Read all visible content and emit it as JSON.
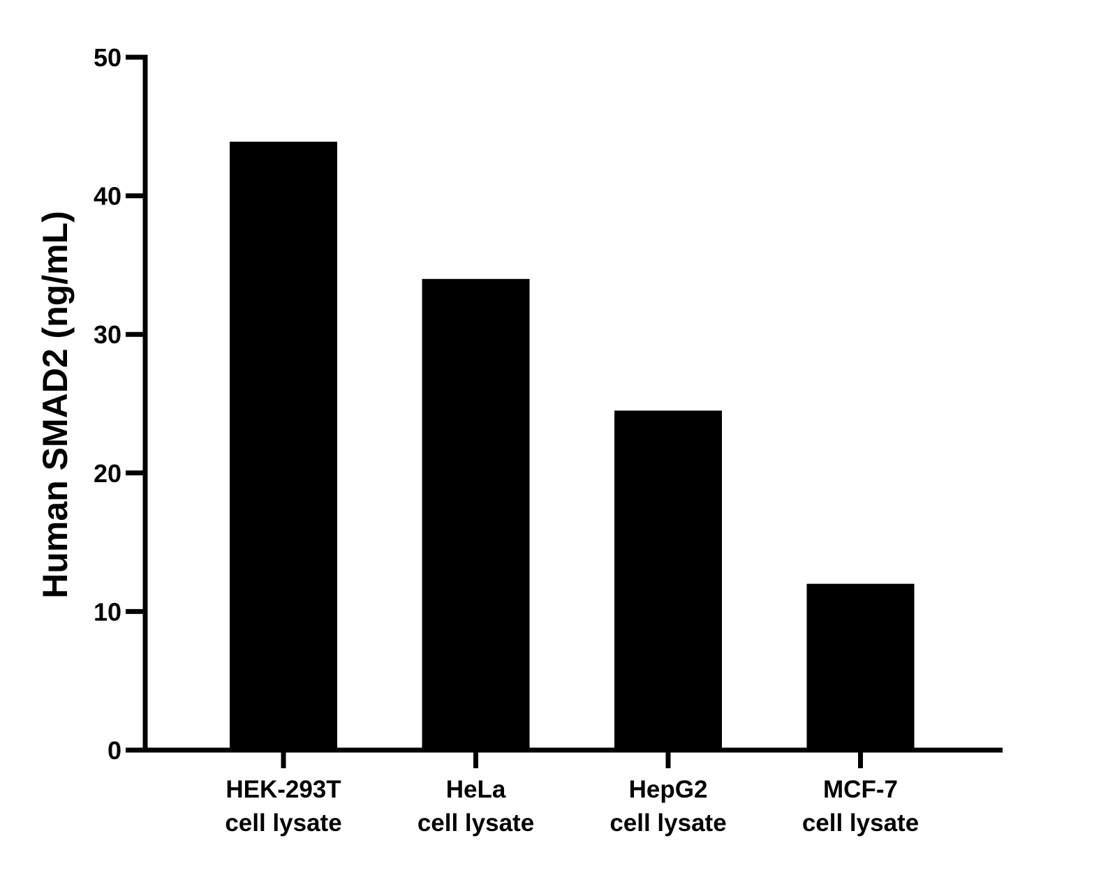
{
  "chart_data": {
    "type": "bar",
    "title": "",
    "xlabel": "",
    "ylabel": "Human SMAD2 (ng/mL)",
    "ylim": [
      0,
      50
    ],
    "yticks": [
      0,
      10,
      20,
      30,
      40,
      50
    ],
    "categories": [
      [
        "HEK-293T",
        "cell lysate"
      ],
      [
        "HeLa",
        "cell lysate"
      ],
      [
        "HepG2",
        "cell lysate"
      ],
      [
        "MCF-7",
        "cell lysate"
      ]
    ],
    "values": [
      43.9,
      34.0,
      24.5,
      12.0
    ],
    "grid": false,
    "legend": "none",
    "bar_color": "#000000",
    "axis_color": "#000000"
  }
}
